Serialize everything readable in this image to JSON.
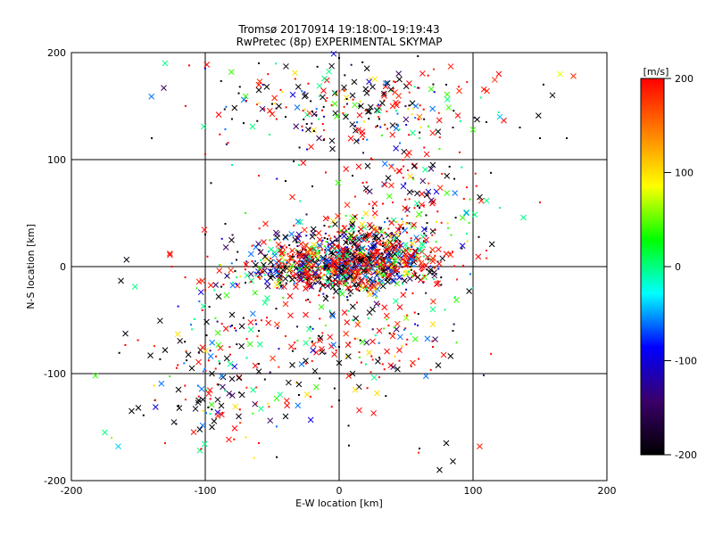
{
  "chart_data": {
    "type": "scatter",
    "title": "Tromsø 20170914 19:18:00–19:19:43",
    "subtitle": "RwPretec (8p) EXPERIMENTAL SKYMAP",
    "xlabel": "E-W location [km]",
    "ylabel": "N-S location [km]",
    "xlim": [
      -200,
      200
    ],
    "ylim": [
      -200,
      200
    ],
    "x_ticks": [
      "-200",
      "-100",
      "0",
      "100",
      "200"
    ],
    "y_ticks": [
      "-200",
      "-100",
      "0",
      "100",
      "200"
    ],
    "grid": true,
    "colorbar": {
      "unit": "[m/s]",
      "min": -200,
      "max": 200,
      "tick_labels": [
        "200",
        "100",
        "0",
        "-100",
        "-200"
      ],
      "colormap": [
        "#000000",
        "#3a006a",
        "#0000ff",
        "#00ffff",
        "#00ff00",
        "#ffff00",
        "#ff8000",
        "#ff0000"
      ]
    },
    "series": [
      {
        "marker": "x",
        "points": [
          [
            -130,
            190,
            0
          ],
          [
            165,
            180,
            80
          ],
          [
            175,
            178,
            180
          ],
          [
            -60,
            170,
            190
          ],
          [
            -25,
            160,
            -200
          ],
          [
            10,
            160,
            -190
          ],
          [
            40,
            150,
            190
          ],
          [
            -90,
            142,
            200
          ],
          [
            -15,
            120,
            -150
          ],
          [
            60,
            140,
            150
          ],
          [
            -5,
            110,
            -190
          ],
          [
            -60,
            165,
            -200
          ],
          [
            -45,
            150,
            -195
          ],
          [
            25,
            168,
            -190
          ],
          [
            5,
            140,
            -200
          ],
          [
            55,
            125,
            0
          ],
          [
            100,
            128,
            40
          ],
          [
            70,
            95,
            -200
          ],
          [
            120,
            140,
            -40
          ],
          [
            45,
            175,
            -200
          ],
          [
            -35,
            65,
            190
          ],
          [
            -55,
            40,
            190
          ],
          [
            -10,
            45,
            200
          ],
          [
            -30,
            30,
            -120
          ],
          [
            -25,
            20,
            185
          ],
          [
            10,
            35,
            0
          ],
          [
            0,
            10,
            0
          ],
          [
            -35,
            15,
            180
          ],
          [
            -45,
            5,
            200
          ],
          [
            25,
            12,
            195
          ],
          [
            40,
            20,
            200
          ],
          [
            50,
            15,
            185
          ],
          [
            70,
            5,
            190
          ],
          [
            80,
            12,
            195
          ],
          [
            65,
            25,
            200
          ],
          [
            15,
            25,
            -160
          ],
          [
            -20,
            28,
            -180
          ],
          [
            95,
            50,
            -50
          ],
          [
            105,
            65,
            -200
          ],
          [
            5,
            -5,
            200
          ],
          [
            -15,
            -8,
            190
          ],
          [
            -35,
            -12,
            -200
          ],
          [
            20,
            -18,
            190
          ],
          [
            -90,
            -28,
            -200
          ],
          [
            -80,
            -45,
            -200
          ],
          [
            -25,
            -45,
            200
          ],
          [
            30,
            -60,
            200
          ],
          [
            25,
            -70,
            195
          ],
          [
            40,
            -65,
            190
          ],
          [
            45,
            -78,
            200
          ],
          [
            -130,
            -78,
            -200
          ],
          [
            -110,
            -95,
            -200
          ],
          [
            -95,
            -100,
            -200
          ],
          [
            -80,
            -105,
            -190
          ],
          [
            -60,
            -98,
            -200
          ],
          [
            -35,
            -92,
            -200
          ],
          [
            -25,
            -88,
            -195
          ],
          [
            0,
            -90,
            -200
          ],
          [
            10,
            -100,
            -200
          ],
          [
            -30,
            -110,
            -190
          ],
          [
            -120,
            -115,
            -200
          ],
          [
            -105,
            -125,
            -200
          ],
          [
            -88,
            -130,
            -200
          ],
          [
            -75,
            -140,
            -190
          ],
          [
            -150,
            -132,
            -200
          ],
          [
            -155,
            -135,
            -200
          ],
          [
            -95,
            -150,
            -200
          ],
          [
            -40,
            -140,
            -200
          ],
          [
            -165,
            -168,
            -40
          ],
          [
            -175,
            -155,
            0
          ],
          [
            75,
            -190,
            -200
          ],
          [
            85,
            -182,
            -200
          ],
          [
            105,
            -168,
            190
          ],
          [
            80,
            -165,
            -200
          ],
          [
            50,
            -48,
            60
          ],
          [
            70,
            -40,
            0
          ],
          [
            55,
            -90,
            190
          ],
          [
            -40,
            -35,
            185
          ],
          [
            -10,
            -30,
            -200
          ],
          [
            25,
            -40,
            -200
          ]
        ]
      },
      {
        "marker": "dot",
        "points": [
          [
            -112,
            188,
            200
          ],
          [
            -60,
            190,
            -200
          ],
          [
            0,
            195,
            -200
          ],
          [
            80,
            170,
            -200
          ],
          [
            -75,
            162,
            -200
          ],
          [
            -50,
            152,
            -200
          ],
          [
            -40,
            140,
            -200
          ],
          [
            -20,
            145,
            -200
          ],
          [
            15,
            150,
            -200
          ],
          [
            30,
            138,
            -200
          ],
          [
            45,
            128,
            20
          ],
          [
            60,
            120,
            10
          ],
          [
            75,
            110,
            40
          ],
          [
            85,
            130,
            -180
          ],
          [
            110,
            135,
            -180
          ],
          [
            135,
            130,
            -200
          ],
          [
            150,
            120,
            -200
          ],
          [
            170,
            120,
            -200
          ],
          [
            -140,
            120,
            -200
          ],
          [
            -100,
            105,
            200
          ],
          [
            -80,
            95,
            0
          ],
          [
            -60,
            85,
            190
          ],
          [
            -40,
            80,
            -200
          ],
          [
            -20,
            75,
            -200
          ],
          [
            20,
            70,
            200
          ],
          [
            40,
            60,
            190
          ],
          [
            55,
            70,
            -200
          ],
          [
            60,
            55,
            -200
          ],
          [
            65,
            48,
            -200
          ],
          [
            50,
            40,
            100
          ],
          [
            45,
            35,
            -120
          ],
          [
            35,
            30,
            20
          ],
          [
            20,
            25,
            0
          ],
          [
            15,
            15,
            -140
          ],
          [
            5,
            18,
            -80
          ],
          [
            -5,
            22,
            -160
          ],
          [
            -15,
            8,
            100
          ],
          [
            -30,
            5,
            200
          ],
          [
            -45,
            -5,
            190
          ],
          [
            -60,
            -10,
            200
          ],
          [
            -70,
            -15,
            -200
          ],
          [
            -100,
            -22,
            200
          ],
          [
            -115,
            -10,
            190
          ],
          [
            -125,
            0,
            200
          ],
          [
            -80,
            -55,
            -200
          ],
          [
            -60,
            -60,
            -200
          ],
          [
            -40,
            -65,
            190
          ],
          [
            -20,
            -70,
            -200
          ],
          [
            0,
            -75,
            -200
          ],
          [
            15,
            -80,
            190
          ],
          [
            30,
            -85,
            -200
          ],
          [
            45,
            -88,
            190
          ],
          [
            -10,
            -55,
            50
          ],
          [
            10,
            -50,
            0
          ],
          [
            30,
            -35,
            200
          ],
          [
            55,
            -25,
            190
          ],
          [
            -5,
            -15,
            -40
          ],
          [
            12,
            -5,
            60
          ],
          [
            28,
            2,
            -80
          ],
          [
            38,
            8,
            190
          ],
          [
            -8,
            2,
            190
          ],
          [
            -25,
            -2,
            200
          ],
          [
            -50,
            0,
            -200
          ],
          [
            -65,
            5,
            200
          ],
          [
            -120,
            -130,
            -200
          ],
          [
            -130,
            -165,
            190
          ],
          [
            -170,
            -160,
            60
          ],
          [
            60,
            -170,
            -200
          ],
          [
            -60,
            -165,
            200
          ],
          [
            0,
            -125,
            -200
          ],
          [
            -30,
            -120,
            -200
          ],
          [
            70,
            -75,
            200
          ],
          [
            85,
            -60,
            -200
          ],
          [
            100,
            -20,
            0
          ],
          [
            110,
            15,
            200
          ],
          [
            120,
            55,
            0
          ],
          [
            150,
            60,
            200
          ],
          [
            -100,
            30,
            -200
          ],
          [
            -85,
            40,
            -200
          ],
          [
            -70,
            50,
            40
          ],
          [
            -30,
            95,
            0
          ],
          [
            0,
            100,
            -200
          ],
          [
            25,
            100,
            190
          ],
          [
            10,
            85,
            -200
          ],
          [
            -10,
            88,
            200
          ]
        ]
      }
    ],
    "clusters": [
      {
        "cx": 0,
        "cy": 0,
        "sx": 38,
        "sy": 12,
        "n": 900
      },
      {
        "cx": 20,
        "cy": 20,
        "sx": 30,
        "sy": 15,
        "n": 300
      },
      {
        "cx": 15,
        "cy": 150,
        "sx": 55,
        "sy": 20,
        "n": 260
      },
      {
        "cx": 55,
        "cy": 60,
        "sx": 25,
        "sy": 25,
        "n": 110
      },
      {
        "cx": -40,
        "cy": -65,
        "sx": 55,
        "sy": 45,
        "n": 190
      },
      {
        "cx": -85,
        "cy": -110,
        "sx": 25,
        "sy": 30,
        "n": 90
      },
      {
        "cx": 40,
        "cy": -60,
        "sx": 25,
        "sy": 20,
        "n": 60
      }
    ]
  }
}
